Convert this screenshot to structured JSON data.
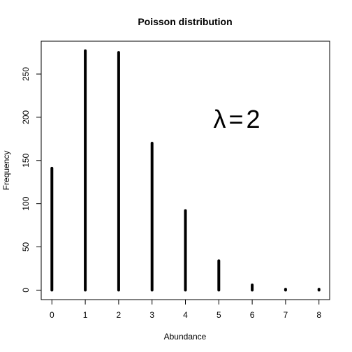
{
  "chart_data": {
    "type": "bar",
    "title": "Poisson distribution",
    "xlabel": "Abundance",
    "ylabel": "Frequency",
    "x": [
      0,
      1,
      2,
      3,
      4,
      5,
      6,
      7,
      8
    ],
    "values": [
      141,
      277,
      275,
      170,
      92,
      34,
      6,
      1,
      1
    ],
    "xlim": [
      -0.32,
      8.32
    ],
    "ylim": [
      -11,
      288
    ],
    "x_ticks": [
      "0",
      "1",
      "2",
      "3",
      "4",
      "5",
      "6",
      "7",
      "8"
    ],
    "y_ticks": [
      "0",
      "50",
      "100",
      "150",
      "200",
      "250"
    ],
    "y_tick_values": [
      0,
      50,
      100,
      150,
      200,
      250
    ],
    "annotation": {
      "symbol": "λ",
      "operator": "=",
      "value": "2"
    },
    "grid": false,
    "bar_color": "#000000"
  }
}
